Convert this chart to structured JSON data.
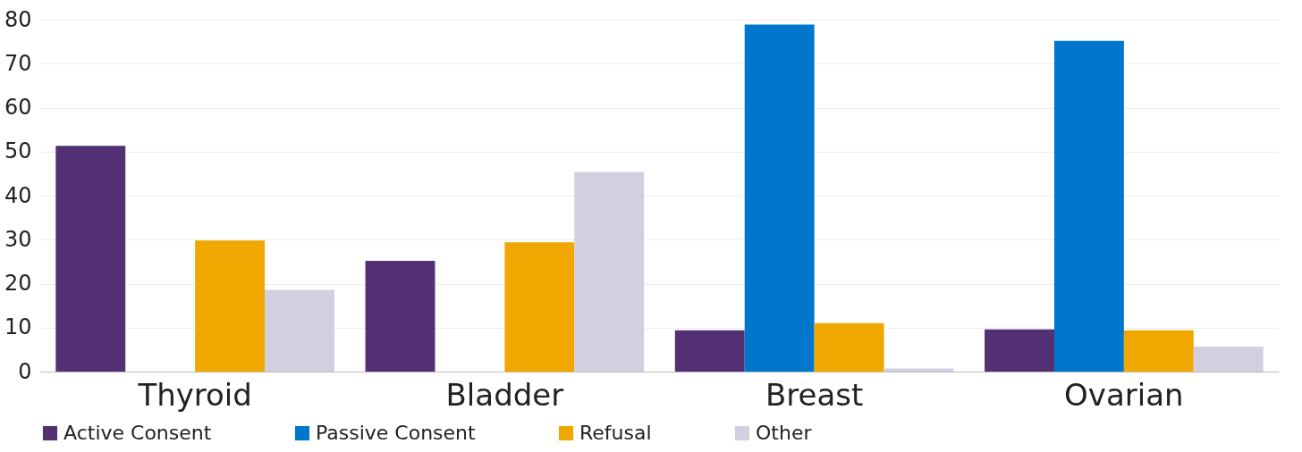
{
  "chart_data": {
    "type": "bar",
    "categories": [
      "Thyroid",
      "Bladder",
      "Breast",
      "Ovarian"
    ],
    "series": [
      {
        "name": "Active Consent",
        "color": "#532f74",
        "values": [
          51.3,
          25.2,
          9.4,
          9.6
        ]
      },
      {
        "name": "Passive Consent",
        "color": "#0077cc",
        "values": [
          0,
          0,
          78.9,
          75.2
        ]
      },
      {
        "name": "Refusal",
        "color": "#f0a800",
        "values": [
          29.8,
          29.4,
          11,
          9.4
        ]
      },
      {
        "name": "Other",
        "color": "#d4cfe0",
        "values": [
          18.6,
          45.4,
          0.7,
          5.7
        ]
      }
    ],
    "ylim": [
      0,
      80
    ],
    "yticks": [
      0,
      10,
      20,
      30,
      40,
      50,
      60,
      70,
      80
    ],
    "grid": "y",
    "legend": "bottom"
  }
}
